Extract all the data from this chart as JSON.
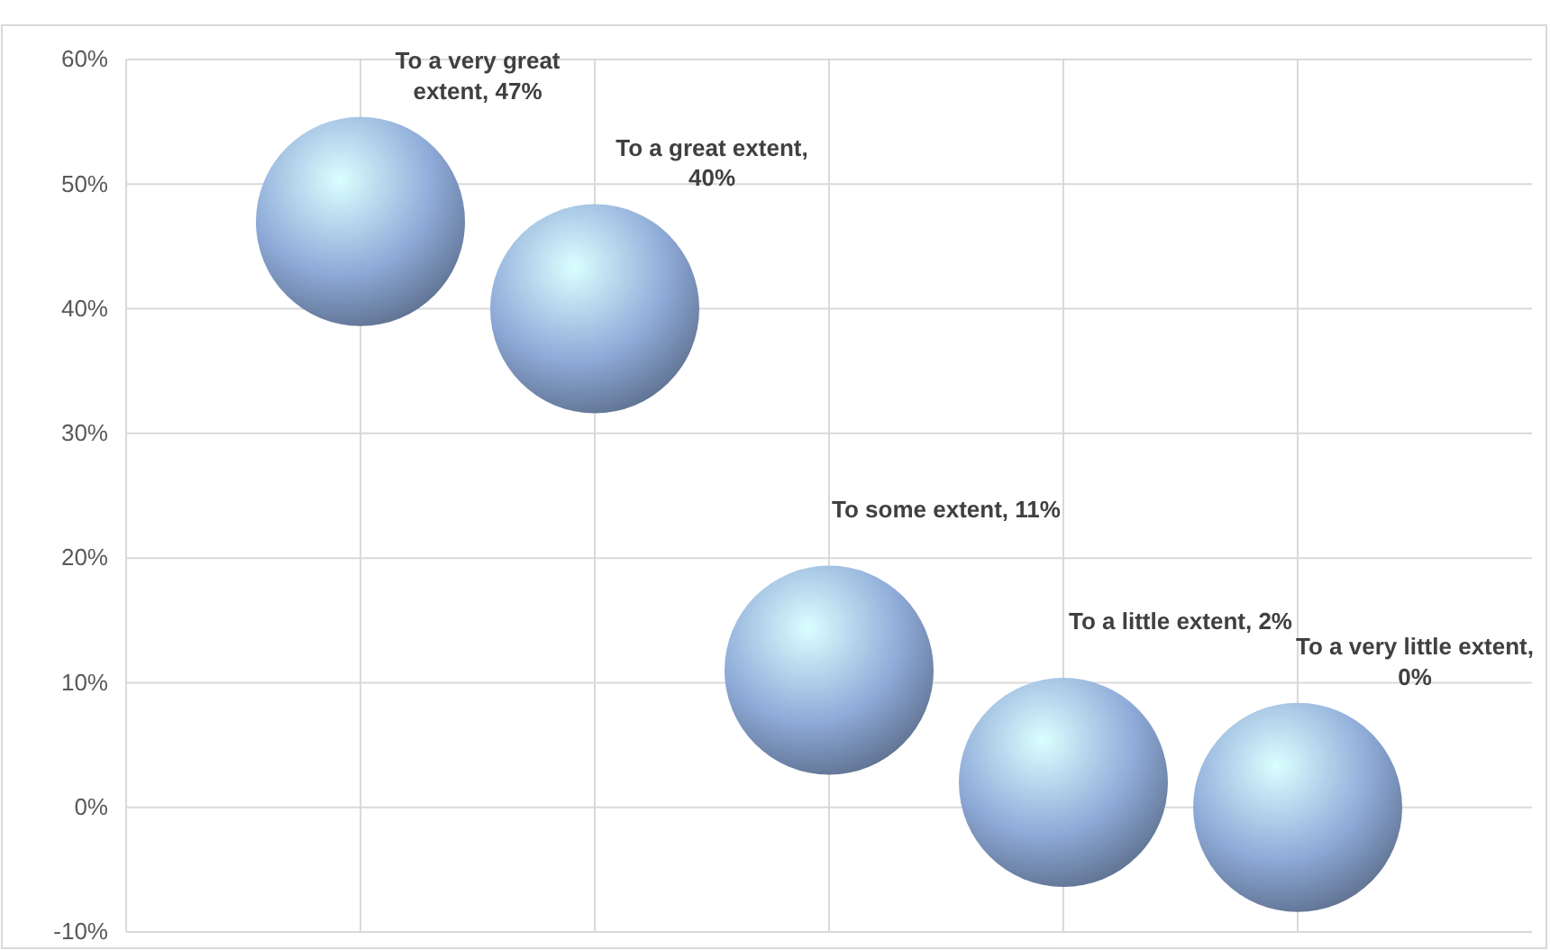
{
  "chart_data": {
    "type": "bubble",
    "categories": [
      null,
      null,
      null,
      null,
      null
    ],
    "values": [
      47,
      40,
      11,
      2,
      0
    ],
    "sizes": [
      1,
      1,
      1,
      1,
      1
    ],
    "color": "#8eaad8",
    "value_labels": [
      "To a very great extent, 47%",
      "To a great extent, 40%",
      "To some extent, 11%",
      "To a little extent, 2%",
      "To a very little extent, 0%"
    ],
    "ylim": [
      -10,
      60
    ],
    "yticks": [
      {
        "value": -10,
        "label": "-10%"
      },
      {
        "value": 0,
        "label": "0%"
      },
      {
        "value": 10,
        "label": "10%"
      },
      {
        "value": 20,
        "label": "20%"
      },
      {
        "value": 30,
        "label": "30%"
      },
      {
        "value": 40,
        "label": "40%"
      },
      {
        "value": 50,
        "label": "50%"
      },
      {
        "value": 60,
        "label": "60%"
      }
    ],
    "grid": true,
    "tick_labels": "y"
  }
}
